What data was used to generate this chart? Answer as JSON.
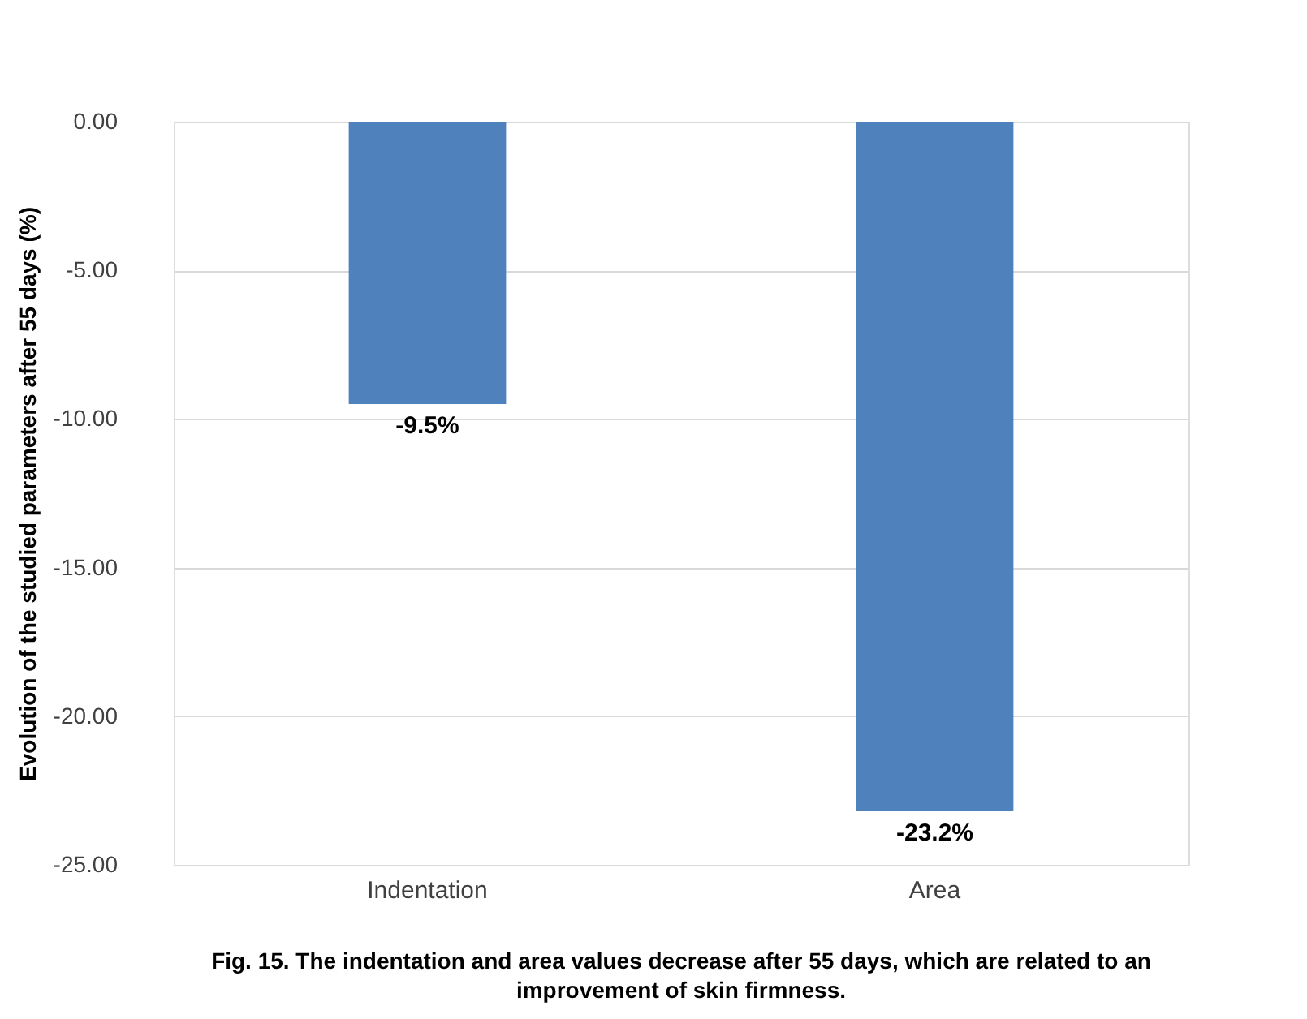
{
  "chart_data": {
    "type": "bar",
    "ylabel": "Evolution of the studied parameters after 55 days (%)",
    "categories": [
      "Indentation",
      "Area"
    ],
    "values": [
      -9.5,
      -23.2
    ],
    "value_labels": [
      "-9.5%",
      "-23.2%"
    ],
    "color": "#4f81bd",
    "ylim": [
      -25,
      0
    ],
    "yticks": [
      {
        "value": 0,
        "label": "0.00"
      },
      {
        "value": -5,
        "label": "-5.00"
      },
      {
        "value": -10,
        "label": "-10.00"
      },
      {
        "value": -15,
        "label": "-15.00"
      },
      {
        "value": -20,
        "label": "-20.00"
      },
      {
        "value": -25,
        "label": "-25.00"
      }
    ],
    "grid": "y",
    "annotations": [
      "Fig. 15.  The indentation and area values decrease after 55 days, which are related to an improvement of skin firmness."
    ]
  }
}
